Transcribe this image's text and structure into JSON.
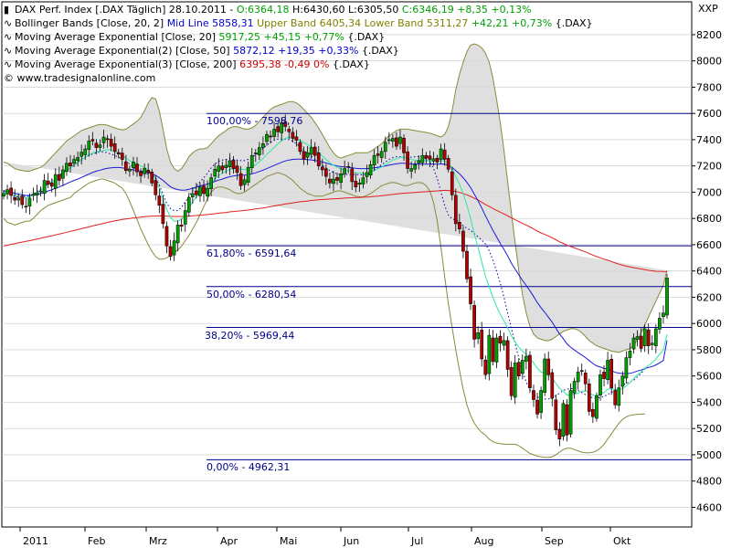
{
  "header": {
    "series_label": "DAX Perf. Index [.DAX  Täglich] 28.10.2011 -",
    "ohlc_o": "O:6364,18",
    "ohlc_h": "H:6430,60",
    "ohlc_l": "L:6305,50",
    "ohlc_c": "C:6346,19",
    "ohlc_chg": "+8,35",
    "ohlc_pct": "+0,13%",
    "xxp": "XXP"
  },
  "legend": {
    "bb": {
      "label": "Bollinger Bands [Close, 20, 2]",
      "mid": "Mid Line 5858,31",
      "upper": "Upper Band 6405,34",
      "lower": "Lower Band 5311,27",
      "chg": "+42,21 +0,73%",
      "sym": "{.DAX}"
    },
    "ema20": {
      "label": "Moving Average Exponential [Close, 20]",
      "value": "5917,25 +45,15 +0,77%",
      "sym": "{.DAX}"
    },
    "ema50": {
      "label": "Moving Average Exponential(2) [Close, 50]",
      "value": "5872,12 +19,35 +0,33%",
      "sym": "{.DAX}"
    },
    "ema200": {
      "label": "Moving Average Exponential(3) [Close, 200]",
      "value": "6395,38 -0,49 0%",
      "sym": "{.DAX}"
    },
    "copyright": "© www.tradesignalonline.com"
  },
  "fib_levels": [
    {
      "label": "100,00% - 7598,76",
      "value": 7600
    },
    {
      "label": "61,80% - 6591,64",
      "value": 6592
    },
    {
      "label": "50,00% - 6280,54",
      "value": 6281
    },
    {
      "label": "38,20% - 5969,44",
      "value": 5970
    },
    {
      "label": "0,00% - 4962,31",
      "value": 4962
    }
  ],
  "colors": {
    "bands_fill": "#d9d9d9",
    "bands_line": "#8a8a3a",
    "ema20": "#2ee8a0",
    "ema50": "#1a1adc",
    "ema200": "#e02020",
    "midline": "#0000aa",
    "fib": "#00008b",
    "candle_up": "#00a000",
    "candle_down": "#b00000",
    "grid": "#c8c8c8"
  },
  "chart_data": {
    "type": "candlestick",
    "ylim": [
      4450,
      8450
    ],
    "y_ticks": [
      4600,
      4800,
      5000,
      5200,
      5400,
      5600,
      5800,
      6000,
      6200,
      6400,
      6600,
      6800,
      7000,
      7200,
      7400,
      7600,
      7800,
      8000,
      8200
    ],
    "months": [
      "2011",
      "Feb",
      "Mrz",
      "Apr",
      "Mai",
      "Jun",
      "Jul",
      "Aug",
      "Sep",
      "Okt"
    ],
    "close": [
      6990,
      7020,
      6975,
      6940,
      6955,
      6905,
      6890,
      6955,
      6985,
      6995,
      7010,
      7090,
      7060,
      7045,
      7135,
      7090,
      7170,
      7220,
      7200,
      7250,
      7265,
      7305,
      7330,
      7390,
      7390,
      7340,
      7360,
      7420,
      7400,
      7350,
      7310,
      7290,
      7250,
      7165,
      7175,
      7230,
      7155,
      7125,
      7180,
      7150,
      7070,
      6980,
      6900,
      6760,
      6590,
      6510,
      6630,
      6750,
      6740,
      6860,
      6960,
      6990,
      6980,
      7040,
      6990,
      7030,
      7110,
      7175,
      7200,
      7170,
      7205,
      7240,
      7180,
      7150,
      7050,
      7095,
      7190,
      7280,
      7300,
      7340,
      7370,
      7440,
      7420,
      7480,
      7460,
      7530,
      7500,
      7460,
      7410,
      7395,
      7310,
      7250,
      7300,
      7340,
      7280,
      7200,
      7170,
      7120,
      7070,
      7100,
      7090,
      7140,
      7180,
      7190,
      7080,
      7040,
      7070,
      7110,
      7150,
      7210,
      7280,
      7280,
      7310,
      7380,
      7400,
      7410,
      7350,
      7420,
      7300,
      7180,
      7180,
      7210,
      7240,
      7280,
      7260,
      7250,
      7255,
      7230,
      7330,
      7250,
      7175,
      6980,
      6760,
      6720,
      6550,
      6340,
      6150,
      5880,
      5930,
      5730,
      5610,
      5910,
      5710,
      5890,
      5850,
      5870,
      5650,
      5450,
      5700,
      5600,
      5720,
      5750,
      5510,
      5420,
      5310,
      5490,
      5730,
      5610,
      5430,
      5190,
      5120,
      5390,
      5150,
      5490,
      5560,
      5630,
      5640,
      5540,
      5330,
      5290,
      5450,
      5610,
      5580,
      5720,
      5510,
      5380,
      5510,
      5600,
      5740,
      5790,
      5890,
      5900,
      5810,
      5960,
      5830,
      5850,
      5960,
      6040,
      6080,
      6346
    ],
    "ema20": [
      7000,
      7004,
      6992,
      6980,
      6970,
      6962,
      6958,
      6965,
      6980,
      6995,
      7015,
      7040,
      7060,
      7075,
      7100,
      7118,
      7140,
      7165,
      7185,
      7205,
      7225,
      7245,
      7265,
      7285,
      7300,
      7308,
      7312,
      7318,
      7325,
      7320,
      7310,
      7298,
      7282,
      7260,
      7240,
      7228,
      7215,
      7200,
      7188,
      7170,
      7140,
      7098,
      7030,
      6950,
      6870,
      6810,
      6780,
      6780,
      6795,
      6830,
      6880,
      6925,
      6965,
      6998,
      7015,
      7040,
      7070,
      7100,
      7128,
      7145,
      7160,
      7172,
      7178,
      7180,
      7175,
      7172,
      7178,
      7192,
      7210,
      7232,
      7258,
      7290,
      7315,
      7342,
      7368,
      7392,
      7410,
      7418,
      7418,
      7410,
      7395,
      7378,
      7362,
      7345,
      7325,
      7300,
      7275,
      7250,
      7225,
      7205,
      7190,
      7178,
      7170,
      7165,
      7158,
      7150,
      7145,
      7142,
      7145,
      7152,
      7165,
      7178,
      7192,
      7210,
      7228,
      7245,
      7255,
      7265,
      7265,
      7258,
      7250,
      7245,
      7242,
      7242,
      7240,
      7238,
      7236,
      7235,
      7240,
      7238,
      7220,
      7180,
      7120,
      7060,
      6990,
      6900,
      6800,
      6680,
      6580,
      6470,
      6360,
      6280,
      6200,
      6130,
      6070,
      6020,
      5965,
      5905,
      5860,
      5820,
      5790,
      5765,
      5735,
      5700,
      5660,
      5630,
      5620,
      5605,
      5585,
      5545,
      5505,
      5485,
      5455,
      5455,
      5460,
      5470,
      5485,
      5485,
      5470,
      5455,
      5450,
      5465,
      5475,
      5500,
      5505,
      5495,
      5500,
      5505,
      5525,
      5548,
      5580,
      5610,
      5630,
      5660,
      5680,
      5700,
      5730,
      5765,
      5800,
      5917
    ],
    "ema50": [
      7005,
      7006,
      7000,
      6992,
      6985,
      6980,
      6975,
      6975,
      6978,
      6982,
      6990,
      7000,
      7010,
      7018,
      7030,
      7040,
      7052,
      7065,
      7078,
      7090,
      7100,
      7112,
      7125,
      7138,
      7150,
      7160,
      7168,
      7176,
      7182,
      7186,
      7188,
      7188,
      7186,
      7180,
      7174,
      7170,
      7165,
      7160,
      7156,
      7150,
      7140,
      7128,
      7110,
      7090,
      7065,
      7042,
      7028,
      7020,
      7015,
      7016,
      7022,
      7030,
      7038,
      7048,
      7055,
      7062,
      7072,
      7082,
      7092,
      7100,
      7110,
      7118,
      7124,
      7128,
      7130,
      7130,
      7134,
      7140,
      7148,
      7158,
      7168,
      7180,
      7192,
      7204,
      7216,
      7228,
      7238,
      7245,
      7250,
      7252,
      7252,
      7250,
      7248,
      7246,
      7242,
      7236,
      7230,
      7222,
      7214,
      7206,
      7200,
      7195,
      7192,
      7190,
      7186,
      7182,
      7180,
      7180,
      7180,
      7182,
      7186,
      7190,
      7195,
      7200,
      7206,
      7212,
      7216,
      7220,
      7220,
      7218,
      7216,
      7215,
      7214,
      7214,
      7214,
      7214,
      7214,
      7213,
      7215,
      7214,
      7205,
      7188,
      7165,
      7140,
      7110,
      7075,
      7035,
      6985,
      6935,
      6880,
      6820,
      6765,
      6710,
      6660,
      6610,
      6565,
      6515,
      6460,
      6415,
      6370,
      6328,
      6290,
      6250,
      6205,
      6160,
      6120,
      6085,
      6048,
      6010,
      5965,
      5920,
      5885,
      5845,
      5820,
      5798,
      5778,
      5760,
      5740,
      5718,
      5695,
      5678,
      5668,
      5658,
      5652,
      5642,
      5628,
      5622,
      5618,
      5618,
      5620,
      5628,
      5638,
      5645,
      5658,
      5665,
      5672,
      5685,
      5700,
      5718,
      5872
    ],
    "ema200": [
      6590,
      6596,
      6602,
      6608,
      6614,
      6620,
      6625,
      6631,
      6637,
      6643,
      6649,
      6656,
      6662,
      6668,
      6675,
      6681,
      6688,
      6695,
      6702,
      6708,
      6715,
      6722,
      6729,
      6736,
      6743,
      6750,
      6756,
      6763,
      6770,
      6776,
      6782,
      6787,
      6792,
      6796,
      6800,
      6804,
      6807,
      6810,
      6813,
      6816,
      6818,
      6819,
      6820,
      6819,
      6818,
      6816,
      6815,
      6815,
      6815,
      6816,
      6818,
      6820,
      6822,
      6825,
      6827,
      6830,
      6833,
      6836,
      6840,
      6843,
      6846,
      6850,
      6853,
      6856,
      6858,
      6861,
      6864,
      6868,
      6872,
      6876,
      6880,
      6885,
      6890,
      6895,
      6900,
      6905,
      6910,
      6915,
      6919,
      6923,
      6927,
      6930,
      6933,
      6937,
      6940,
      6942,
      6944,
      6946,
      6948,
      6950,
      6951,
      6953,
      6955,
      6957,
      6958,
      6959,
      6960,
      6962,
      6963,
      6965,
      6968,
      6970,
      6973,
      6976,
      6980,
      6983,
      6986,
      6990,
      6992,
      6994,
      6996,
      6998,
      7000,
      7002,
      7004,
      7006,
      7008,
      7010,
      7013,
      7014,
      7013,
      7010,
      7005,
      6998,
      6990,
      6980,
      6968,
      6954,
      6940,
      6924,
      6906,
      6892,
      6876,
      6862,
      6848,
      6835,
      6820,
      6804,
      6790,
      6776,
      6762,
      6750,
      6735,
      6720,
      6704,
      6690,
      6678,
      6666,
      6653,
      6638,
      6622,
      6610,
      6596,
      6586,
      6576,
      6566,
      6556,
      6545,
      6533,
      6521,
      6510,
      6500,
      6490,
      6482,
      6472,
      6461,
      6452,
      6444,
      6437,
      6431,
      6425,
      6420,
      6415,
      6410,
      6405,
      6401,
      6398,
      6397,
      6396,
      6395
    ],
    "bb_upper": [
      7230,
      7220,
      7200,
      7180,
      7170,
      7165,
      7160,
      7160,
      7170,
      7180,
      7190,
      7210,
      7240,
      7270,
      7300,
      7330,
      7360,
      7390,
      7410,
      7430,
      7450,
      7470,
      7480,
      7490,
      7500,
      7510,
      7515,
      7515,
      7510,
      7500,
      7490,
      7480,
      7475,
      7480,
      7500,
      7520,
      7540,
      7570,
      7620,
      7680,
      7720,
      7710,
      7620,
      7480,
      7330,
      7230,
      7180,
      7160,
      7180,
      7220,
      7270,
      7300,
      7320,
      7330,
      7330,
      7340,
      7370,
      7400,
      7430,
      7450,
      7470,
      7490,
      7500,
      7500,
      7490,
      7480,
      7480,
      7490,
      7510,
      7540,
      7570,
      7600,
      7630,
      7650,
      7660,
      7670,
      7680,
      7690,
      7690,
      7680,
      7660,
      7630,
      7600,
      7570,
      7530,
      7490,
      7440,
      7390,
      7340,
      7300,
      7270,
      7260,
      7270,
      7280,
      7290,
      7300,
      7300,
      7300,
      7300,
      7310,
      7330,
      7350,
      7370,
      7400,
      7430,
      7450,
      7470,
      7480,
      7480,
      7480,
      7475,
      7470,
      7465,
      7460,
      7455,
      7450,
      7440,
      7430,
      7420,
      7440,
      7500,
      7620,
      7780,
      7900,
      7990,
      8070,
      8120,
      8130,
      8120,
      8100,
      8060,
      7990,
      7870,
      7710,
      7530,
      7320,
      7080,
      6840,
      6620,
      6400,
      6220,
      6080,
      5980,
      5920,
      5890,
      5880,
      5870,
      5870,
      5880,
      5900,
      5920,
      5940,
      5950,
      5960,
      5960,
      5950,
      5930,
      5900,
      5870,
      5850,
      5830,
      5820,
      5810,
      5800,
      5790,
      5785,
      5780,
      5790,
      5800,
      5810,
      5830,
      5880,
      5930,
      5990,
      6050,
      6110,
      6170,
      6230,
      6290,
      6405
    ],
    "bb_lower": [
      6800,
      6770,
      6760,
      6750,
      6760,
      6770,
      6780,
      6780,
      6800,
      6830,
      6860,
      6880,
      6900,
      6910,
      6920,
      6930,
      6940,
      6950,
      6960,
      6990,
      7010,
      7030,
      7050,
      7070,
      7080,
      7090,
      7100,
      7100,
      7090,
      7080,
      7070,
      7050,
      7030,
      6990,
      6930,
      6860,
      6790,
      6720,
      6660,
      6600,
      6550,
      6510,
      6490,
      6490,
      6500,
      6520,
      6540,
      6560,
      6590,
      6630,
      6670,
      6720,
      6770,
      6830,
      6890,
      6950,
      7000,
      7030,
      7040,
      7040,
      7030,
      7020,
      7000,
      6990,
      6990,
      7000,
      7020,
      7040,
      7060,
      7080,
      7100,
      7120,
      7130,
      7140,
      7150,
      7140,
      7130,
      7110,
      7090,
      7060,
      7030,
      7010,
      6990,
      6980,
      6970,
      6970,
      6970,
      6980,
      6990,
      7000,
      7010,
      7010,
      7000,
      6990,
      6980,
      6970,
      6965,
      6965,
      6975,
      6990,
      7010,
      7030,
      7050,
      7060,
      7070,
      7075,
      7070,
      7060,
      7050,
      7050,
      7060,
      7070,
      7075,
      7070,
      7050,
      7010,
      6920,
      6780,
      6580,
      6360,
      6150,
      5970,
      5800,
      5640,
      5500,
      5380,
      5300,
      5240,
      5200,
      5170,
      5150,
      5120,
      5100,
      5090,
      5085,
      5080,
      5080,
      5080,
      5080,
      5070,
      5050,
      5030,
      5010,
      5000,
      4990,
      4985,
      4980,
      4980,
      4985,
      5000,
      5020,
      5040,
      5050,
      5050,
      5040,
      5030,
      5020,
      5015,
      5015,
      5020,
      5030,
      5050,
      5080,
      5120,
      5160,
      5200,
      5240,
      5270,
      5290,
      5300,
      5305,
      5308,
      5310,
      5311
    ]
  }
}
